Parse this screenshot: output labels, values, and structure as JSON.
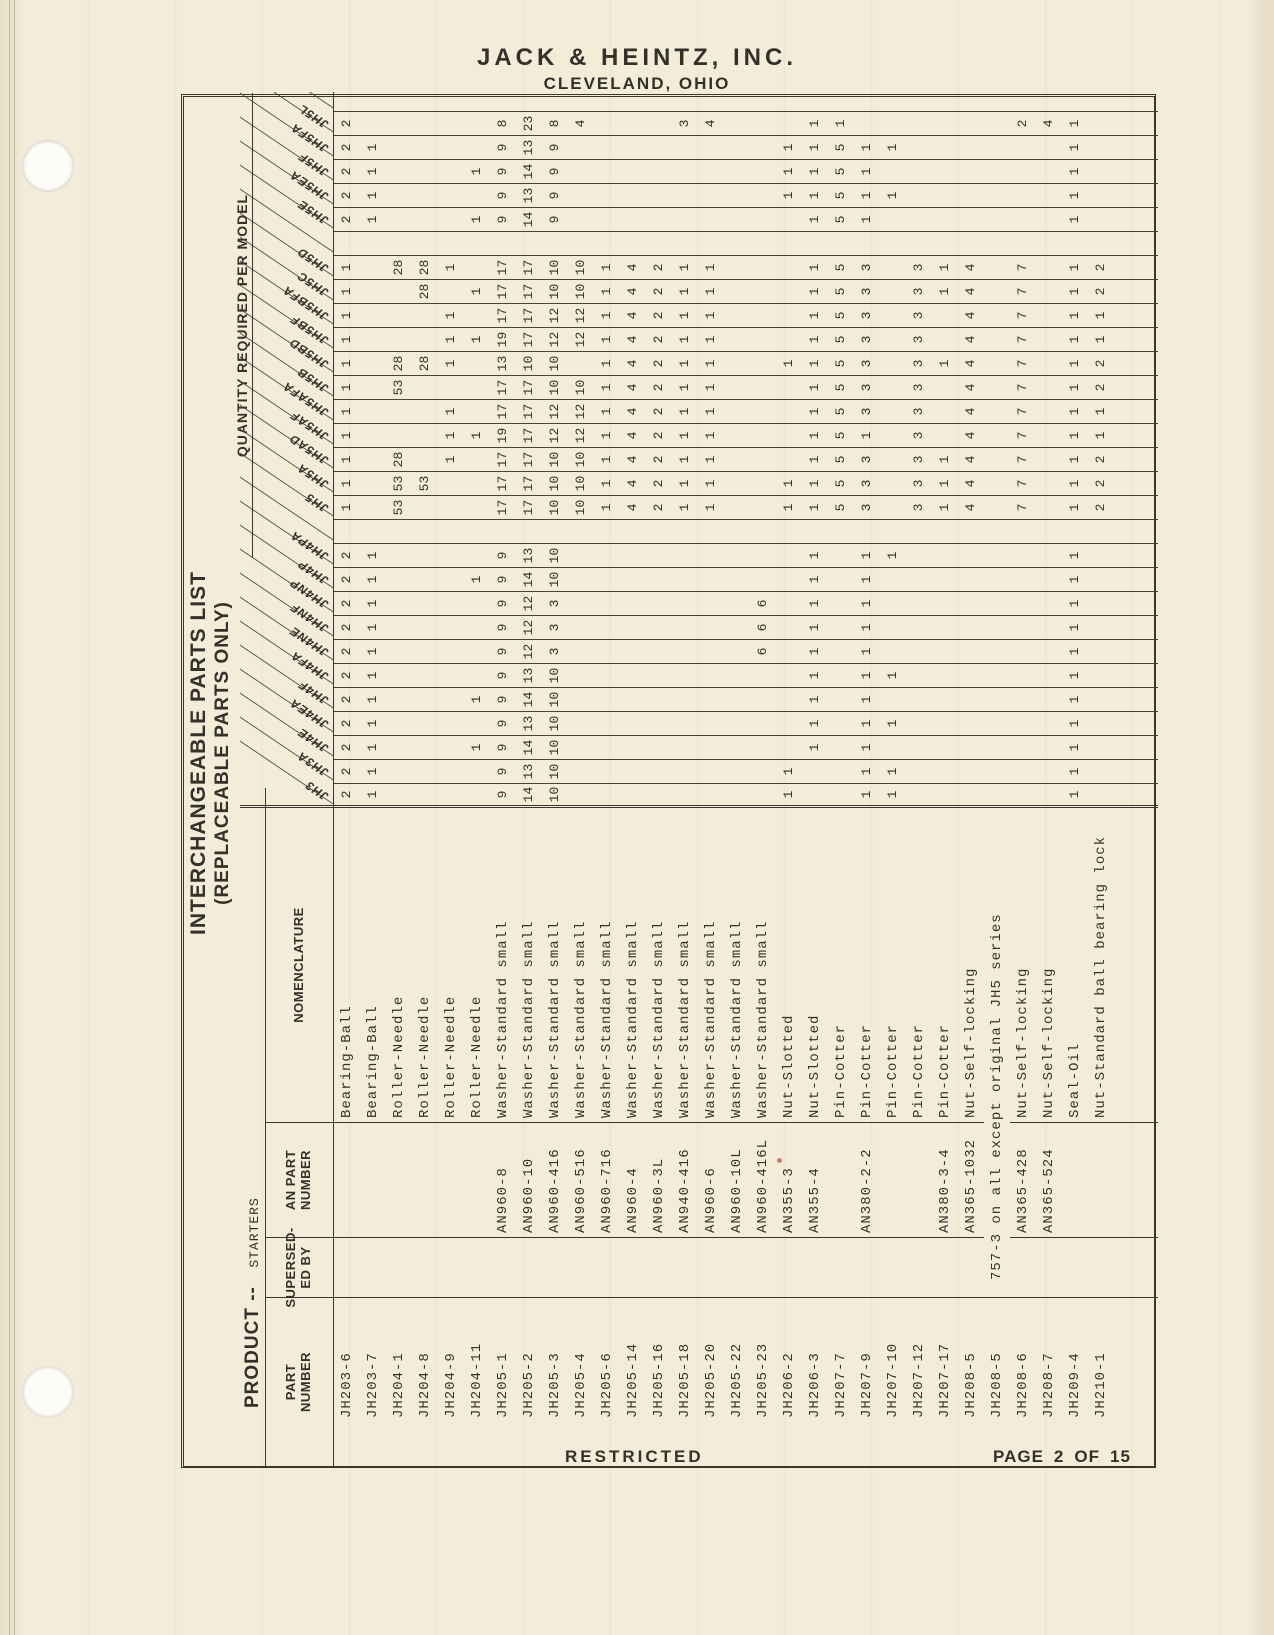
{
  "header": {
    "company": "JACK & HEINTZ, INC.",
    "location": "CLEVELAND, OHIO"
  },
  "footer": {
    "classification": "RESTRICTED",
    "page_label": "PAGE",
    "page_number": "2",
    "of_label": "OF",
    "page_total": "15"
  },
  "table": {
    "title_line1": "INTERCHANGEABLE PARTS LIST",
    "title_line2": "(REPLACEABLE PARTS ONLY)",
    "product_label": "PRODUCT --",
    "product_value": "STARTERS",
    "quantity_header": "QUANTITY REQUIRED PER MODEL",
    "col_headers": {
      "part_number": "PART\nNUMBER",
      "superseded_by": "SUPERSED-\nED BY",
      "an_part_number": "AN PART\nNUMBER",
      "nomenclature": "NOMENCLATURE"
    },
    "models": [
      "JH3",
      "JH3A",
      "JH4E",
      "JH4EA",
      "JH4F",
      "JH4FA",
      "JH4NE",
      "JH4NF",
      "JH4NP",
      "JH4P",
      "JH4PA",
      "",
      "JH5",
      "JH5A",
      "JH5AD",
      "JH5AF",
      "JH5AFA",
      "JH5B",
      "JH5BD",
      "JH5BF",
      "JH5BFA",
      "JH5C",
      "JH5D",
      "",
      "JH5E",
      "JH5EA",
      "JH5F",
      "JH5FA",
      "JH5L"
    ],
    "parts": [
      {
        "part": "JH203-6",
        "superseded": "",
        "an": "",
        "nomen": "Bearing-Ball",
        "qty": {
          "JH3": 2,
          "JH3A": 2,
          "JH4E": 2,
          "JH4EA": 2,
          "JH4F": 2,
          "JH4FA": 2,
          "JH4NE": 2,
          "JH4NF": 2,
          "JH4NP": 2,
          "JH4P": 2,
          "JH4PA": 2,
          "JH5": 1,
          "JH5A": 1,
          "JH5AD": 1,
          "JH5AF": 1,
          "JH5AFA": 1,
          "JH5B": 1,
          "JH5BD": 1,
          "JH5BF": 1,
          "JH5BFA": 1,
          "JH5C": 1,
          "JH5D": 1,
          "JH5E": 2,
          "JH5EA": 2,
          "JH5F": 2,
          "JH5FA": 2,
          "JH5L": 2
        }
      },
      {
        "part": "JH203-7",
        "superseded": "",
        "an": "",
        "nomen": "Bearing-Ball",
        "qty": {
          "JH3": 1,
          "JH3A": 1,
          "JH4E": 1,
          "JH4EA": 1,
          "JH4F": 1,
          "JH4FA": 1,
          "JH4NE": 1,
          "JH4NF": 1,
          "JH4NP": 1,
          "JH4P": 1,
          "JH4PA": 1,
          "JH5E": 1,
          "JH5EA": 1,
          "JH5F": 1,
          "JH5FA": 1
        }
      },
      {
        "part": "JH204-1",
        "superseded": "",
        "an": "",
        "nomen": "Roller-Needle",
        "qty": {
          "JH5": 53,
          "JH5A": 53,
          "JH5AD": 28,
          "JH5B": 53,
          "JH5BD": 28,
          "JH5D": 28
        }
      },
      {
        "part": "JH204-8",
        "superseded": "",
        "an": "",
        "nomen": "Roller-Needle",
        "qty": {
          "JH5A": 53,
          "JH5BD": 28,
          "JH5C": 28,
          "JH5D": 28
        }
      },
      {
        "part": "JH204-9",
        "superseded": "",
        "an": "",
        "nomen": "Roller-Needle",
        "qty": {
          "JH5AD": 1,
          "JH5AF": 1,
          "JH5AFA": 1,
          "JH5BD": 1,
          "JH5BF": 1,
          "JH5BFA": 1,
          "JH5D": 1
        }
      },
      {
        "part": "JH204-11",
        "superseded": "",
        "an": "",
        "nomen": "Roller-Needle",
        "qty": {
          "JH4E": 1,
          "JH4F": 1,
          "JH4P": 1,
          "JH5AF": 1,
          "JH5BF": 1,
          "JH5C": 1,
          "JH5E": 1,
          "JH5F": 1
        }
      },
      {
        "part": "JH205-1",
        "superseded": "",
        "an": "AN960-8",
        "nomen": "Washer-Standard small",
        "qty": {
          "JH3": 9,
          "JH3A": 9,
          "JH4E": 9,
          "JH4EA": 9,
          "JH4F": 9,
          "JH4FA": 9,
          "JH4NE": 9,
          "JH4NF": 9,
          "JH4NP": 9,
          "JH4P": 9,
          "JH4PA": 9,
          "JH5": 17,
          "JH5A": 17,
          "JH5AD": 17,
          "JH5AF": 19,
          "JH5AFA": 17,
          "JH5B": 17,
          "JH5BD": 13,
          "JH5BF": 19,
          "JH5BFA": 17,
          "JH5C": 17,
          "JH5D": 17,
          "JH5E": 9,
          "JH5EA": 9,
          "JH5F": 9,
          "JH5FA": 9,
          "JH5L": 8
        }
      },
      {
        "part": "JH205-2",
        "superseded": "",
        "an": "AN960-10",
        "nomen": "Washer-Standard small",
        "qty": {
          "JH3": 14,
          "JH3A": 13,
          "JH4E": 14,
          "JH4EA": 13,
          "JH4F": 14,
          "JH4FA": 13,
          "JH4NE": 12,
          "JH4NF": 12,
          "JH4NP": 12,
          "JH4P": 14,
          "JH4PA": 13,
          "JH5": 17,
          "JH5A": 17,
          "JH5AD": 17,
          "JH5AF": 17,
          "JH5AFA": 17,
          "JH5B": 17,
          "JH5BD": 10,
          "JH5BF": 17,
          "JH5BFA": 17,
          "JH5C": 17,
          "JH5D": 17,
          "JH5E": 14,
          "JH5EA": 13,
          "JH5F": 14,
          "JH5FA": 13,
          "JH5L": 23
        }
      },
      {
        "part": "JH205-3",
        "superseded": "",
        "an": "AN960-416",
        "nomen": "Washer-Standard small",
        "qty": {
          "JH3": 10,
          "JH3A": 10,
          "JH4E": 10,
          "JH4EA": 10,
          "JH4F": 10,
          "JH4FA": 10,
          "JH4NE": 3,
          "JH4NF": 3,
          "JH4NP": 3,
          "JH4P": 10,
          "JH4PA": 10,
          "JH5": 10,
          "JH5A": 10,
          "JH5AD": 10,
          "JH5AF": 12,
          "JH5AFA": 12,
          "JH5B": 10,
          "JH5BD": 10,
          "JH5BF": 12,
          "JH5BFA": 12,
          "JH5C": 10,
          "JH5D": 10,
          "JH5E": 9,
          "JH5EA": 9,
          "JH5F": 9,
          "JH5FA": 9,
          "JH5L": 8
        }
      },
      {
        "part": "JH205-4",
        "superseded": "",
        "an": "AN960-516",
        "nomen": "Washer-Standard small",
        "qty": {
          "JH5": 10,
          "JH5A": 10,
          "JH5AD": 10,
          "JH5AF": 12,
          "JH5AFA": 12,
          "JH5B": 10,
          "JH5BF": 12,
          "JH5BFA": 12,
          "JH5C": 10,
          "JH5D": 10,
          "JH5L": 4
        }
      },
      {
        "part": "JH205-6",
        "superseded": "",
        "an": "AN960-716",
        "nomen": "Washer-Standard small",
        "qty": {
          "JH5": 1,
          "JH5A": 1,
          "JH5AD": 1,
          "JH5AF": 1,
          "JH5AFA": 1,
          "JH5B": 1,
          "JH5BD": 1,
          "JH5BF": 1,
          "JH5BFA": 1,
          "JH5C": 1,
          "JH5D": 1
        }
      },
      {
        "part": "JH205-14",
        "superseded": "",
        "an": "AN960-4",
        "nomen": "Washer-Standard small",
        "qty": {
          "JH5": 4,
          "JH5A": 4,
          "JH5AD": 4,
          "JH5AF": 4,
          "JH5AFA": 4,
          "JH5B": 4,
          "JH5BD": 4,
          "JH5BF": 4,
          "JH5BFA": 4,
          "JH5C": 4,
          "JH5D": 4
        }
      },
      {
        "part": "JH205-16",
        "superseded": "",
        "an": "AN960-3L",
        "nomen": "Washer-Standard small",
        "qty": {
          "JH5": 2,
          "JH5A": 2,
          "JH5AD": 2,
          "JH5AF": 2,
          "JH5AFA": 2,
          "JH5B": 2,
          "JH5BD": 2,
          "JH5BF": 2,
          "JH5BFA": 2,
          "JH5C": 2,
          "JH5D": 2
        }
      },
      {
        "part": "JH205-18",
        "superseded": "",
        "an": "AN940-416",
        "nomen": "Washer-Standard small",
        "qty": {
          "JH5": 1,
          "JH5A": 1,
          "JH5AD": 1,
          "JH5AF": 1,
          "JH5AFA": 1,
          "JH5B": 1,
          "JH5BD": 1,
          "JH5BF": 1,
          "JH5BFA": 1,
          "JH5C": 1,
          "JH5D": 1,
          "JH5L": 3
        }
      },
      {
        "part": "JH205-20",
        "superseded": "",
        "an": "AN960-6",
        "nomen": "Washer-Standard small",
        "qty": {
          "JH5": 1,
          "JH5A": 1,
          "JH5AD": 1,
          "JH5AF": 1,
          "JH5AFA": 1,
          "JH5B": 1,
          "JH5BD": 1,
          "JH5BF": 1,
          "JH5BFA": 1,
          "JH5C": 1,
          "JH5D": 1,
          "JH5L": 4
        }
      },
      {
        "part": "JH205-22",
        "superseded": "",
        "an": "AN960-10L",
        "nomen": "Washer-Standard small",
        "qty": {}
      },
      {
        "part": "JH205-23",
        "superseded": "",
        "an": "AN960-416L",
        "nomen": "Washer-Standard small",
        "qty": {
          "JH4NE": 6,
          "JH4NF": 6,
          "JH4NP": 6
        }
      },
      {
        "part": "JH206-2",
        "superseded": "",
        "an": "AN355-3",
        "nomen": "Nut-Slotted",
        "qty": {
          "JH3": 1,
          "JH3A": 1,
          "JH5": 1,
          "JH5A": 1,
          "JH5BD": 1,
          "JH5EA": 1,
          "JH5F": 1,
          "JH5FA": 1
        }
      },
      {
        "part": "JH206-3",
        "superseded": "",
        "an": "AN355-4",
        "nomen": "Nut-Slotted",
        "qty": {
          "JH4E": 1,
          "JH4EA": 1,
          "JH4F": 1,
          "JH4FA": 1,
          "JH4NE": 1,
          "JH4NF": 1,
          "JH4NP": 1,
          "JH4P": 1,
          "JH4PA": 1,
          "JH5": 1,
          "JH5A": 1,
          "JH5AD": 1,
          "JH5AF": 1,
          "JH5AFA": 1,
          "JH5B": 1,
          "JH5BD": 1,
          "JH5BF": 1,
          "JH5BFA": 1,
          "JH5C": 1,
          "JH5D": 1,
          "JH5E": 1,
          "JH5EA": 1,
          "JH5F": 1,
          "JH5FA": 1,
          "JH5L": 1
        }
      },
      {
        "part": "JH207-7",
        "superseded": "",
        "an": "",
        "nomen": "Pin-Cotter",
        "qty": {
          "JH5": 5,
          "JH5A": 5,
          "JH5AD": 5,
          "JH5AF": 5,
          "JH5AFA": 5,
          "JH5B": 5,
          "JH5BD": 5,
          "JH5BF": 5,
          "JH5BFA": 5,
          "JH5C": 5,
          "JH5D": 5,
          "JH5E": 5,
          "JH5EA": 5,
          "JH5F": 5,
          "JH5FA": 5,
          "JH5L": 1
        }
      },
      {
        "part": "JH207-9",
        "superseded": "",
        "an": "AN380-2-2",
        "nomen": "Pin-Cotter",
        "qty": {
          "JH3": 1,
          "JH3A": 1,
          "JH4E": 1,
          "JH4EA": 1,
          "JH4F": 1,
          "JH4FA": 1,
          "JH4NE": 1,
          "JH4NF": 1,
          "JH4NP": 1,
          "JH4P": 1,
          "JH4PA": 1,
          "JH5": 3,
          "JH5A": 3,
          "JH5AD": 3,
          "JH5AF": 1,
          "JH5AFA": 3,
          "JH5B": 3,
          "JH5BD": 3,
          "JH5BF": 3,
          "JH5BFA": 3,
          "JH5C": 3,
          "JH5D": 3,
          "JH5E": 1,
          "JH5EA": 1,
          "JH5F": 1,
          "JH5FA": 1
        }
      },
      {
        "part": "JH207-10",
        "superseded": "",
        "an": "",
        "nomen": "Pin-Cotter",
        "qty": {
          "JH3": 1,
          "JH3A": 1,
          "JH4EA": 1,
          "JH4FA": 1,
          "JH4PA": 1,
          "JH5EA": 1,
          "JH5FA": 1
        }
      },
      {
        "part": "JH207-12",
        "superseded": "",
        "an": "",
        "nomen": "Pin-Cotter",
        "qty": {
          "JH5": 3,
          "JH5A": 3,
          "JH5AD": 3,
          "JH5AF": 3,
          "JH5AFA": 3,
          "JH5B": 3,
          "JH5BD": 3,
          "JH5BF": 3,
          "JH5BFA": 3,
          "JH5C": 3,
          "JH5D": 3
        }
      },
      {
        "part": "JH207-17",
        "superseded": "",
        "an": "AN380-3-4",
        "nomen": "Pin-Cotter",
        "qty": {
          "JH5": 1,
          "JH5A": 1,
          "JH5AD": 1,
          "JH5BD": 1,
          "JH5C": 1,
          "JH5D": 1
        }
      },
      {
        "part": "JH208-5",
        "superseded": "",
        "an": "AN365-1032",
        "nomen": "Nut-Self-locking",
        "qty": {
          "JH5": 4,
          "JH5A": 4,
          "JH5AD": 4,
          "JH5AF": 4,
          "JH5AFA": 4,
          "JH5B": 4,
          "JH5BD": 4,
          "JH5BF": 4,
          "JH5BFA": 4,
          "JH5C": 4,
          "JH5D": 4
        }
      },
      {
        "part": "JH208-5",
        "note": "757-3 on all except original JH5 series",
        "qty": {}
      },
      {
        "part": "JH208-6",
        "superseded": "",
        "an": "AN365-428",
        "nomen": "Nut-Self-locking",
        "qty": {
          "JH5": 7,
          "JH5A": 7,
          "JH5AD": 7,
          "JH5AF": 7,
          "JH5AFA": 7,
          "JH5B": 7,
          "JH5BD": 7,
          "JH5BF": 7,
          "JH5BFA": 7,
          "JH5C": 7,
          "JH5D": 7,
          "JH5L": 2
        }
      },
      {
        "part": "JH208-7",
        "superseded": "",
        "an": "AN365-524",
        "nomen": "Nut-Self-locking",
        "qty": {
          "JH5L": 4
        }
      },
      {
        "part": "JH209-4",
        "superseded": "",
        "an": "",
        "nomen": "Seal-Oil",
        "qty": {
          "JH3": 1,
          "JH3A": 1,
          "JH4E": 1,
          "JH4EA": 1,
          "JH4F": 1,
          "JH4FA": 1,
          "JH4NE": 1,
          "JH4NF": 1,
          "JH4NP": 1,
          "JH4P": 1,
          "JH4PA": 1,
          "JH5": 1,
          "JH5A": 1,
          "JH5AD": 1,
          "JH5AF": 1,
          "JH5AFA": 1,
          "JH5B": 1,
          "JH5BD": 1,
          "JH5BF": 1,
          "JH5BFA": 1,
          "JH5C": 1,
          "JH5D": 1,
          "JH5E": 1,
          "JH5EA": 1,
          "JH5F": 1,
          "JH5FA": 1,
          "JH5L": 1
        }
      },
      {
        "part": "JH210-1",
        "superseded": "",
        "an": "",
        "nomen": "Nut-Standard ball bearing lock",
        "qty": {
          "JH5": 2,
          "JH5A": 2,
          "JH5AD": 2,
          "JH5AF": 1,
          "JH5AFA": 1,
          "JH5B": 2,
          "JH5BD": 2,
          "JH5BF": 1,
          "JH5BFA": 1,
          "JH5C": 2,
          "JH5D": 2
        }
      }
    ]
  }
}
